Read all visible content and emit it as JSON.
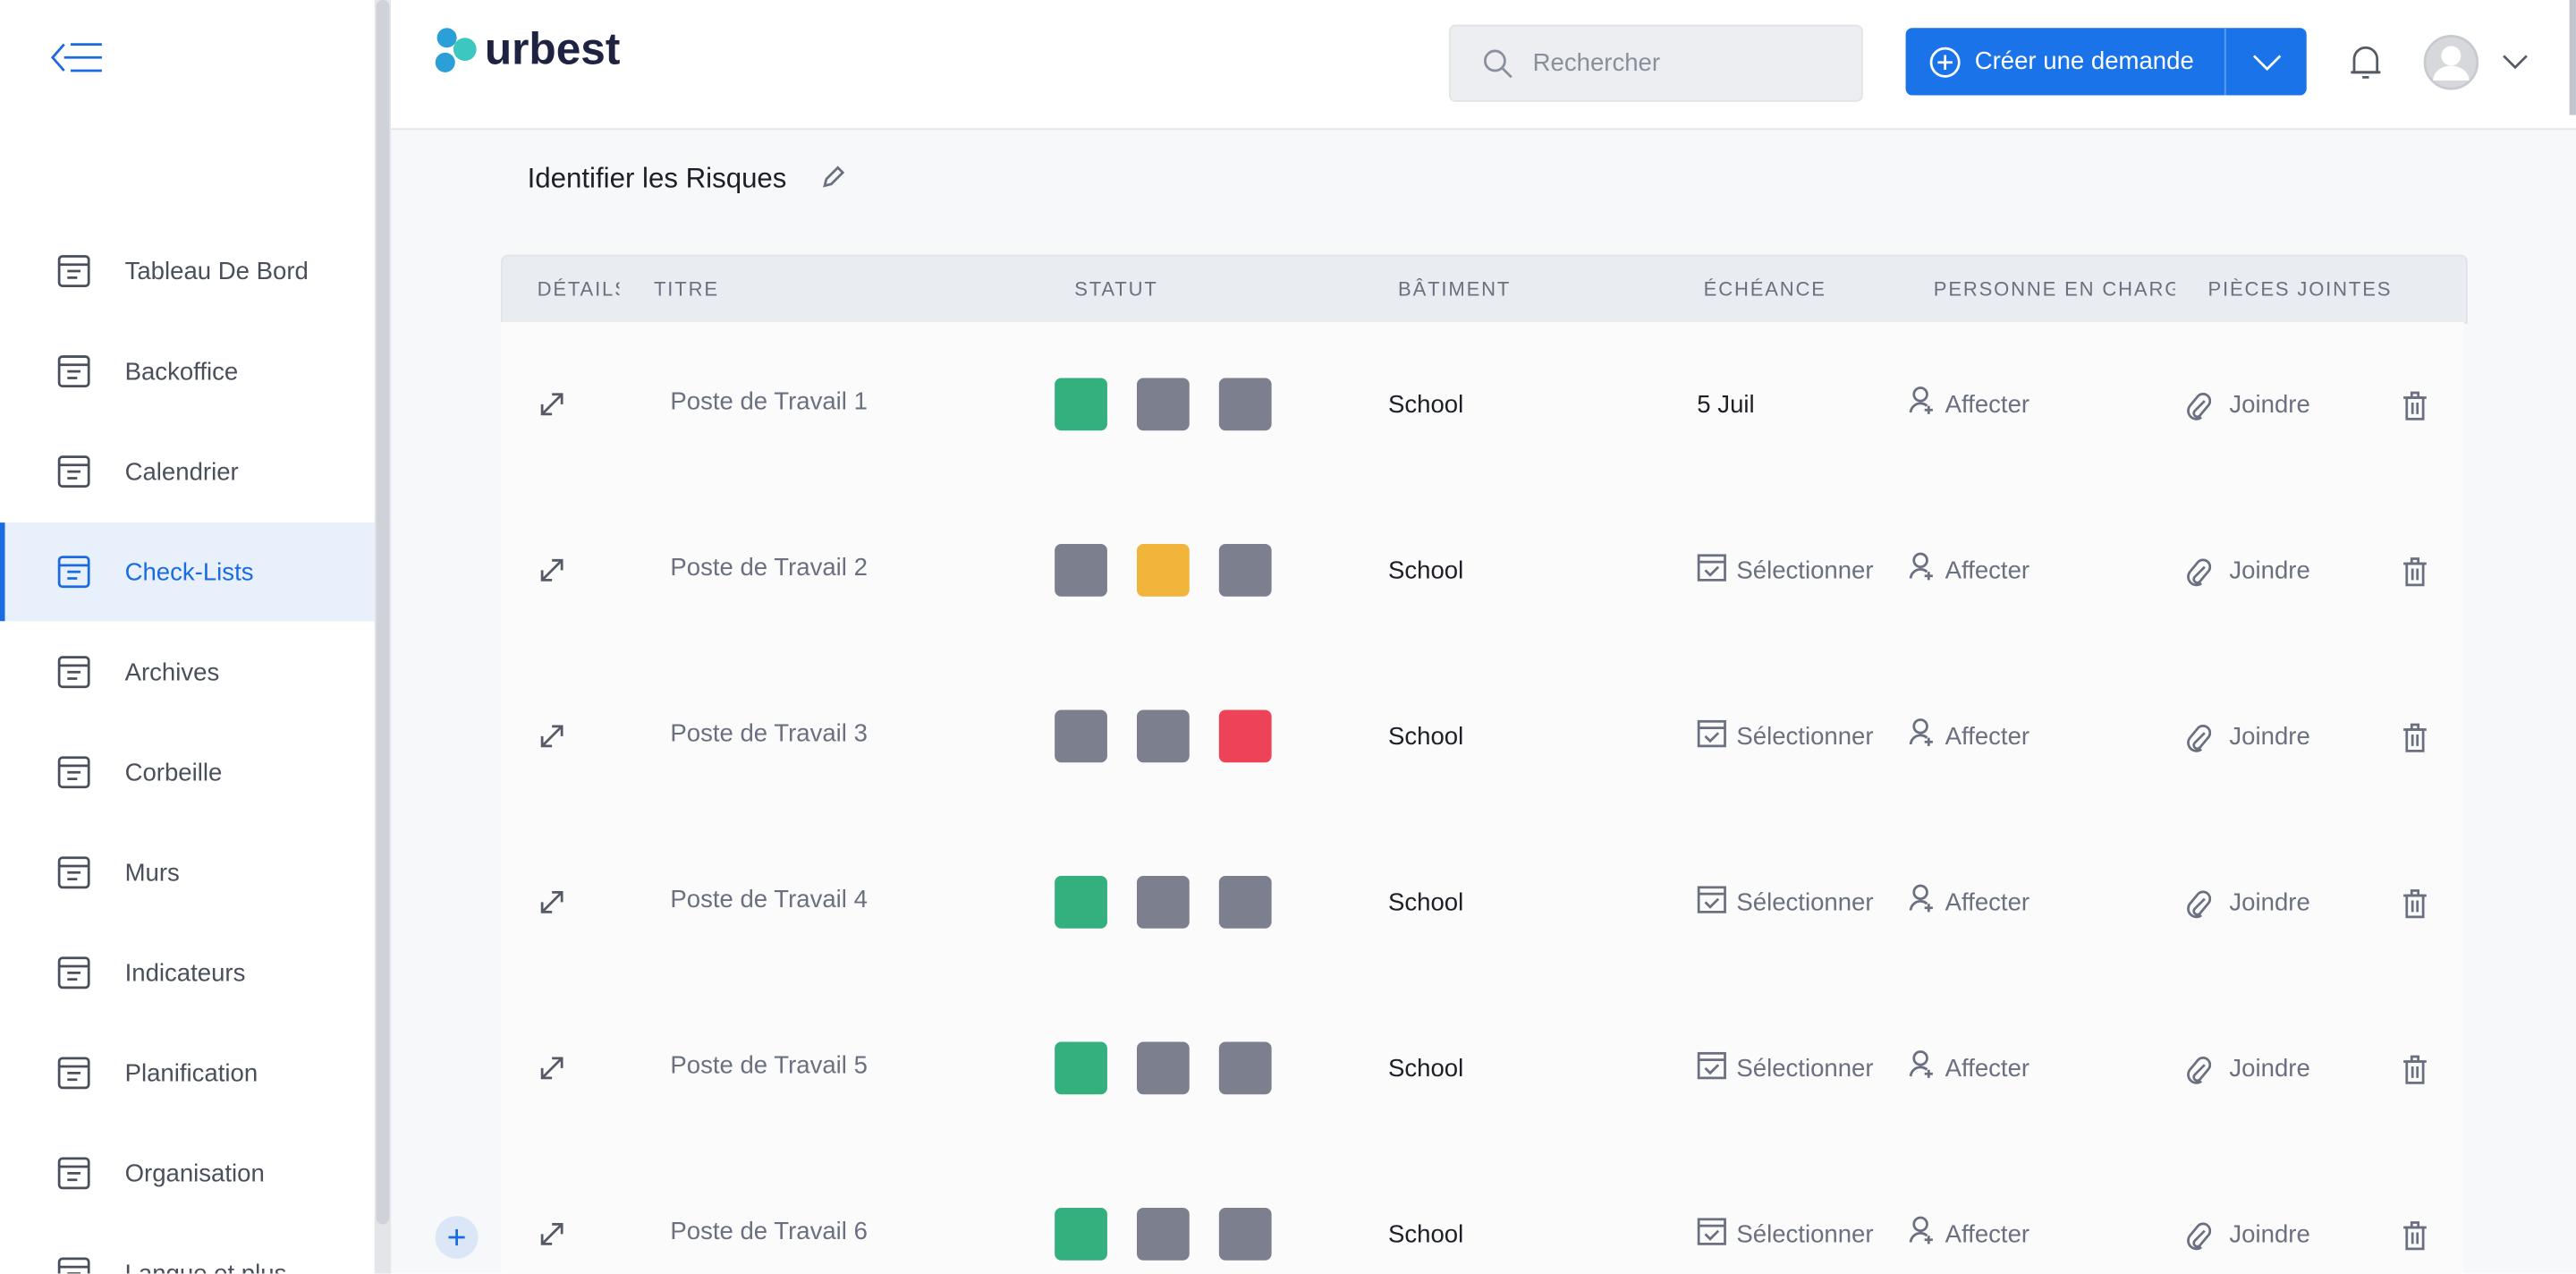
{
  "header": {
    "logo": "urbest",
    "search_placeholder": "Rechercher",
    "create_button": "Créer une demande"
  },
  "sidebar": {
    "items": [
      "Tableau De Bord",
      "Backoffice",
      "Calendrier",
      "Check-Lists",
      "Archives",
      "Corbeille",
      "Murs",
      "Indicateurs",
      "Planification",
      "Organisation",
      "Langue et plus"
    ],
    "active_index": 3
  },
  "page": {
    "title": "Identifier les Risques"
  },
  "table": {
    "columns": [
      "DÉTAILS",
      "TITRE",
      "STATUT",
      "BÂTIMENT",
      "ÉCHÉANCE",
      "PERSONNE EN CHARG",
      "PIÈCES JOINTES"
    ],
    "rows": [
      {
        "title": "Poste de Travail 1",
        "statuses": [
          "#34b07f",
          "#7b7f8e",
          "#7b7f8e"
        ],
        "building": "School",
        "due": {
          "value": "5 Juil"
        },
        "person": "Affecter",
        "attachments": "Joindre"
      },
      {
        "title": "Poste de Travail 2",
        "statuses": [
          "#7b7f8e",
          "#f2b53c",
          "#7b7f8e"
        ],
        "building": "School",
        "due": {
          "placeholder": "Sélectionner"
        },
        "person": "Affecter",
        "attachments": "Joindre"
      },
      {
        "title": "Poste de Travail 3",
        "statuses": [
          "#7b7f8e",
          "#7b7f8e",
          "#ee4259"
        ],
        "building": "School",
        "due": {
          "placeholder": "Sélectionner"
        },
        "person": "Affecter",
        "attachments": "Joindre"
      },
      {
        "title": "Poste de Travail 4",
        "statuses": [
          "#34b07f",
          "#7b7f8e",
          "#7b7f8e"
        ],
        "building": "School",
        "due": {
          "placeholder": "Sélectionner"
        },
        "person": "Affecter",
        "attachments": "Joindre"
      },
      {
        "title": "Poste de Travail 5",
        "statuses": [
          "#34b07f",
          "#7b7f8e",
          "#7b7f8e"
        ],
        "building": "School",
        "due": {
          "placeholder": "Sélectionner"
        },
        "person": "Affecter",
        "attachments": "Joindre"
      },
      {
        "title": "Poste de Travail 6",
        "statuses": [
          "#34b07f",
          "#7b7f8e",
          "#7b7f8e"
        ],
        "building": "School",
        "due": {
          "placeholder": "Sélectionner"
        },
        "person": "Affecter",
        "attachments": "Joindre"
      }
    ]
  }
}
